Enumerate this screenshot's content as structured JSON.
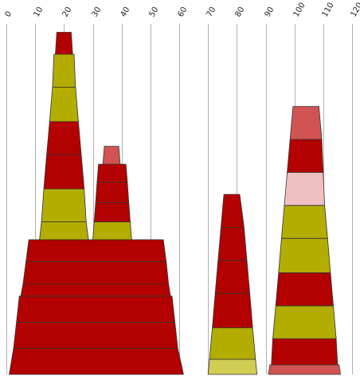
{
  "chart_data": {
    "type": "stacked-trapezoid",
    "title": "",
    "xlabel": "",
    "ylabel": "",
    "xlim": [
      0,
      120
    ],
    "x_ticks": [
      0,
      10,
      20,
      30,
      40,
      50,
      60,
      70,
      80,
      90,
      100,
      110,
      120
    ],
    "grid": "vertical",
    "colors": {
      "red": "#b30000",
      "olive": "#b3ad00",
      "lightred": "#d15353",
      "pink": "#f0c0c0",
      "yellow": "#d1cc53"
    },
    "shapes": [
      {
        "name": "large",
        "segments": [
          {
            "y0": 0.0,
            "y1": 9.5,
            "xl0": 1.0,
            "xr0": 61.5,
            "xl1": 2.5,
            "xr1": 59.5,
            "color": "red"
          },
          {
            "y0": 9.5,
            "y1": 19.0,
            "xl0": 2.5,
            "xr0": 59.5,
            "xl1": 3.5,
            "xr1": 58.5,
            "color": "red"
          },
          {
            "y0": 19.0,
            "y1": 28.5,
            "xl0": 3.5,
            "xr0": 58.5,
            "xl1": 4.5,
            "xr1": 57.5,
            "color": "red"
          },
          {
            "y0": 28.5,
            "y1": 33.0,
            "xl0": 5.0,
            "xr0": 57.0,
            "xl1": 5.8,
            "xr1": 56.3,
            "color": "red"
          },
          {
            "y0": 33.0,
            "y1": 41.0,
            "xl0": 5.8,
            "xr0": 56.3,
            "xl1": 6.8,
            "xr1": 55.5,
            "color": "red"
          },
          {
            "y0": 41.0,
            "y1": 49.0,
            "xl0": 6.8,
            "xr0": 55.5,
            "xl1": 7.8,
            "xr1": 54.5,
            "color": "red"
          }
        ]
      },
      {
        "name": "tall",
        "segments": [
          {
            "y0": 49.0,
            "y1": 55.5,
            "xl0": 11.5,
            "xr0": 28.5,
            "xl1": 12.2,
            "xr1": 27.7,
            "color": "olive"
          },
          {
            "y0": 55.5,
            "y1": 67.5,
            "xl0": 12.2,
            "xr0": 27.7,
            "xl1": 13.0,
            "xr1": 27.0,
            "color": "olive"
          },
          {
            "y0": 67.5,
            "y1": 80.0,
            "xl0": 13.0,
            "xr0": 27.0,
            "xl1": 14.0,
            "xr1": 26.0,
            "color": "red"
          },
          {
            "y0": 80.0,
            "y1": 92.0,
            "xl0": 14.0,
            "xr0": 26.0,
            "xl1": 15.0,
            "xr1": 25.0,
            "color": "red"
          },
          {
            "y0": 92.0,
            "y1": 104.5,
            "xl0": 15.0,
            "xr0": 25.0,
            "xl1": 16.0,
            "xr1": 24.0,
            "color": "olive"
          },
          {
            "y0": 104.5,
            "y1": 116.5,
            "xl0": 16.0,
            "xr0": 24.0,
            "xl1": 16.5,
            "xr1": 23.5,
            "color": "olive"
          },
          {
            "y0": 116.5,
            "y1": 124.5,
            "xl0": 17.0,
            "xr0": 23.0,
            "xl1": 17.5,
            "xr1": 22.5,
            "color": "red"
          }
        ]
      },
      {
        "name": "medium",
        "segments": [
          {
            "y0": 49.0,
            "y1": 55.5,
            "xl0": 30.0,
            "xr0": 43.5,
            "xl1": 30.5,
            "xr1": 43.0,
            "color": "olive"
          },
          {
            "y0": 55.5,
            "y1": 62.5,
            "xl0": 30.5,
            "xr0": 43.0,
            "xl1": 31.0,
            "xr1": 42.5,
            "color": "red"
          },
          {
            "y0": 62.5,
            "y1": 70.0,
            "xl0": 31.0,
            "xr0": 42.5,
            "xl1": 31.5,
            "xr1": 42.0,
            "color": "red"
          },
          {
            "y0": 70.0,
            "y1": 76.5,
            "xl0": 31.5,
            "xr0": 42.0,
            "xl1": 32.0,
            "xr1": 41.5,
            "color": "red"
          },
          {
            "y0": 76.5,
            "y1": 83.0,
            "xl0": 33.5,
            "xr0": 39.5,
            "xl1": 34.0,
            "xr1": 39.0,
            "color": "lightred"
          }
        ]
      },
      {
        "name": "small",
        "segments": [
          {
            "y0": 0.0,
            "y1": 5.5,
            "xl0": 70.0,
            "xr0": 87.0,
            "xl1": 70.5,
            "xr1": 86.5,
            "color": "yellow"
          },
          {
            "y0": 5.5,
            "y1": 17.0,
            "xl0": 70.5,
            "xr0": 86.5,
            "xl1": 71.5,
            "xr1": 85.5,
            "color": "olive"
          },
          {
            "y0": 17.0,
            "y1": 29.5,
            "xl0": 71.5,
            "xr0": 85.5,
            "xl1": 72.5,
            "xr1": 84.5,
            "color": "red"
          },
          {
            "y0": 29.5,
            "y1": 41.5,
            "xl0": 72.5,
            "xr0": 84.5,
            "xl1": 73.5,
            "xr1": 83.5,
            "color": "red"
          },
          {
            "y0": 41.5,
            "y1": 53.5,
            "xl0": 73.5,
            "xr0": 83.5,
            "xl1": 74.5,
            "xr1": 82.5,
            "color": "red"
          },
          {
            "y0": 53.5,
            "y1": 65.5,
            "xl0": 74.5,
            "xr0": 82.5,
            "xl1": 75.5,
            "xr1": 81.0,
            "color": "red"
          }
        ]
      },
      {
        "name": "right",
        "segments": [
          {
            "y0": 0.0,
            "y1": 3.5,
            "xl0": 91.0,
            "xr0": 116.0,
            "xl1": 91.5,
            "xr1": 115.5,
            "color": "lightred"
          },
          {
            "y0": 3.5,
            "y1": 13.0,
            "xl0": 92.0,
            "xr0": 115.0,
            "xl1": 92.5,
            "xr1": 114.5,
            "color": "red"
          },
          {
            "y0": 13.0,
            "y1": 25.0,
            "xl0": 92.5,
            "xr0": 114.5,
            "xl1": 93.5,
            "xr1": 113.5,
            "color": "olive"
          },
          {
            "y0": 25.0,
            "y1": 37.0,
            "xl0": 93.5,
            "xr0": 113.5,
            "xl1": 94.5,
            "xr1": 112.5,
            "color": "red"
          },
          {
            "y0": 37.0,
            "y1": 49.5,
            "xl0": 94.5,
            "xr0": 112.5,
            "xl1": 95.5,
            "xr1": 111.5,
            "color": "olive"
          },
          {
            "y0": 49.5,
            "y1": 61.5,
            "xl0": 95.5,
            "xr0": 111.5,
            "xl1": 96.5,
            "xr1": 110.5,
            "color": "olive"
          },
          {
            "y0": 61.5,
            "y1": 73.5,
            "xl0": 96.5,
            "xr0": 110.5,
            "xl1": 97.5,
            "xr1": 110.0,
            "color": "pink"
          },
          {
            "y0": 73.5,
            "y1": 85.5,
            "xl0": 97.5,
            "xr0": 110.0,
            "xl1": 98.5,
            "xr1": 109.5,
            "color": "red"
          },
          {
            "y0": 85.5,
            "y1": 97.5,
            "xl0": 98.5,
            "xr0": 109.5,
            "xl1": 99.5,
            "xr1": 108.5,
            "color": "lightred"
          }
        ]
      }
    ]
  }
}
